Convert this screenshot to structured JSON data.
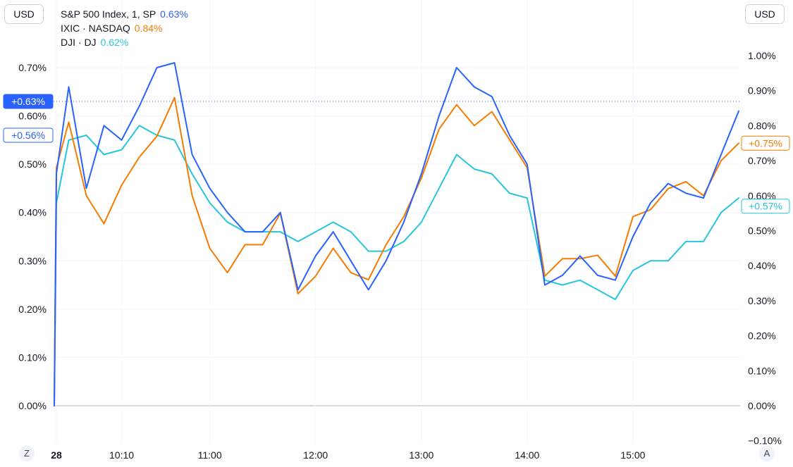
{
  "currency_left": "USD",
  "currency_right": "USD",
  "legend": [
    {
      "name": "S&P 500 Index, 1, SP",
      "value": "0.63%",
      "color": "#2962ff"
    },
    {
      "name": "IXIC · NASDAQ",
      "value": "0.84%",
      "color": "#f57c00"
    },
    {
      "name": "DJI · DJ",
      "value": "0.62%",
      "color": "#26c6da"
    }
  ],
  "buttons": {
    "zoom": "Z",
    "auto": "A"
  },
  "chart_data": {
    "type": "line",
    "x_ticks": [
      "28",
      "10:10",
      "11:00",
      "12:00",
      "13:00",
      "14:00",
      "15:00"
    ],
    "left_axis": {
      "ticks": [
        "0.00%",
        "0.10%",
        "0.20%",
        "0.30%",
        "0.40%",
        "0.50%",
        "0.60%",
        "0.70%"
      ],
      "ylim": [
        0,
        0.72
      ]
    },
    "right_axis": {
      "ticks": [
        "−0.10%",
        "0.00%",
        "0.10%",
        "0.20%",
        "0.30%",
        "0.40%",
        "0.50%",
        "0.60%",
        "0.70%",
        "0.80%",
        "0.90%",
        "1.00%"
      ],
      "ylim": [
        -0.1,
        1.02
      ]
    },
    "x_minutes": [
      0,
      3,
      10,
      20,
      30,
      40,
      50,
      60,
      70,
      80,
      90,
      100,
      110,
      120,
      130,
      140,
      150,
      160,
      170,
      180,
      190,
      200,
      210,
      220,
      230,
      240,
      250,
      260,
      270,
      280,
      290,
      300,
      310,
      320,
      330,
      340,
      350,
      360,
      370,
      380,
      390
    ],
    "series": [
      {
        "name": "S&P 500 Index, 1, SP",
        "axis": "left",
        "color": "#2962ff",
        "values": [
          0.0,
          0.48,
          0.66,
          0.45,
          0.58,
          0.55,
          0.62,
          0.7,
          0.71,
          0.52,
          0.45,
          0.4,
          0.36,
          0.36,
          0.4,
          0.24,
          0.31,
          0.36,
          0.3,
          0.24,
          0.3,
          0.38,
          0.48,
          0.6,
          0.7,
          0.66,
          0.64,
          0.56,
          0.5,
          0.25,
          0.27,
          0.31,
          0.27,
          0.26,
          0.35,
          0.42,
          0.46,
          0.44,
          0.43,
          0.52,
          0.61
        ]
      },
      {
        "name": "IXIC · NASDAQ",
        "axis": "right",
        "color": "#f57c00",
        "values": [
          0.0,
          0.68,
          0.81,
          0.6,
          0.52,
          0.63,
          0.71,
          0.77,
          0.88,
          0.6,
          0.45,
          0.38,
          0.46,
          0.46,
          0.55,
          0.32,
          0.37,
          0.45,
          0.38,
          0.36,
          0.46,
          0.54,
          0.65,
          0.79,
          0.86,
          0.8,
          0.84,
          0.76,
          0.68,
          0.37,
          0.42,
          0.42,
          0.43,
          0.37,
          0.54,
          0.56,
          0.62,
          0.64,
          0.6,
          0.7,
          0.75
        ]
      },
      {
        "name": "DJI · DJ",
        "axis": "left",
        "color": "#26c6da",
        "values": [
          0.0,
          0.42,
          0.55,
          0.56,
          0.52,
          0.53,
          0.58,
          0.56,
          0.55,
          0.48,
          0.42,
          0.38,
          0.36,
          0.36,
          0.36,
          0.34,
          0.36,
          0.38,
          0.36,
          0.32,
          0.32,
          0.34,
          0.38,
          0.45,
          0.52,
          0.49,
          0.48,
          0.44,
          0.43,
          0.26,
          0.25,
          0.26,
          0.24,
          0.22,
          0.28,
          0.3,
          0.3,
          0.34,
          0.34,
          0.4,
          0.43
        ]
      }
    ],
    "price_labels": {
      "left": [
        {
          "text": "+0.63%",
          "value": 0.63,
          "filled": true,
          "color": "#2962ff"
        },
        {
          "text": "+0.56%",
          "value": 0.56,
          "filled": false,
          "color": "#2962ff"
        }
      ],
      "right": [
        {
          "text": "+0.75%",
          "value": 0.75,
          "color": "#f57c00"
        },
        {
          "text": "+0.57%",
          "value": 0.57,
          "color": "#26c6da"
        }
      ]
    },
    "reference_line": {
      "value": 0.63,
      "axis": "left",
      "style": "dotted"
    },
    "grid": true
  }
}
